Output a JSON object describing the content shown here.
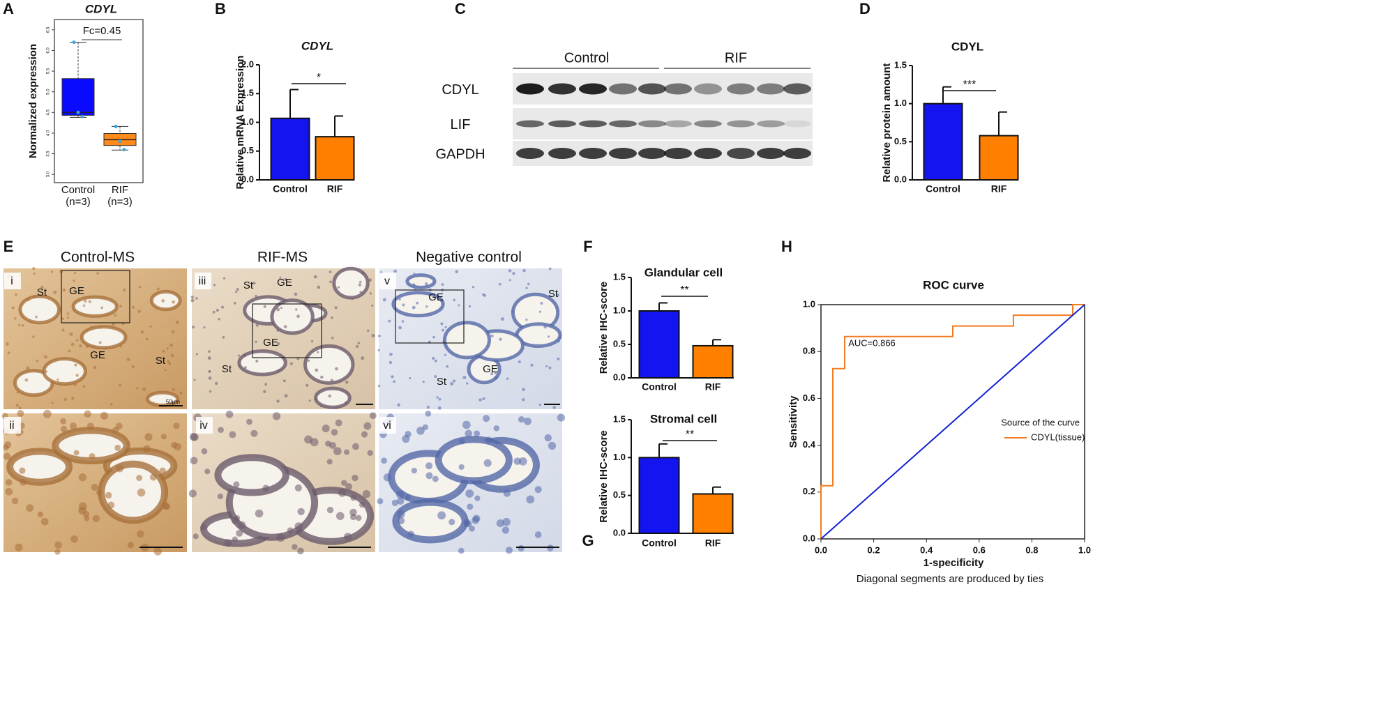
{
  "panels": [
    "A",
    "B",
    "C",
    "D",
    "E",
    "F",
    "G",
    "H"
  ],
  "blot": {
    "groups": [
      "Control",
      "RIF"
    ],
    "rows": [
      "CDYL",
      "LIF",
      "GAPDH"
    ]
  },
  "ihc": {
    "columns": [
      "Control-MS",
      "RIF-MS",
      "Negative control"
    ],
    "panels": [
      {
        "label": "i",
        "tags": [
          "St",
          "GE",
          "GE",
          "St"
        ],
        "scale": "50μm"
      },
      {
        "label": "ii"
      },
      {
        "label": "iii",
        "tags": [
          "St",
          "GE",
          "GE",
          "St"
        ]
      },
      {
        "label": "iv"
      },
      {
        "label": "v",
        "tags": [
          "GE",
          "St",
          "GE",
          "St"
        ]
      },
      {
        "label": "vi"
      }
    ]
  },
  "chart_data": [
    {
      "type": "box",
      "title": "CDYL",
      "ylabel": "Normalized expression",
      "annotation": "Fc=0.45",
      "categories": [
        "Control",
        "RIF"
      ],
      "category_notes": [
        "(n=3)",
        "(n=3)"
      ],
      "colors": [
        "#0a0aff",
        "#ff8c1a"
      ],
      "point_color": "#3aa8e0",
      "boxes": [
        {
          "min": 4.38,
          "q1": 4.43,
          "median": 4.5,
          "q3": 5.32,
          "max": 6.2,
          "points": [
            6.2,
            4.5,
            4.4
          ]
        },
        {
          "min": 3.59,
          "q1": 3.7,
          "median": 3.84,
          "q3": 3.99,
          "max": 4.16,
          "points": [
            4.16,
            3.8,
            3.6
          ]
        }
      ],
      "ylim": [
        2.8,
        6.75
      ],
      "yticks": [
        {
          "value": 3,
          "label": "3.0"
        },
        3.5,
        {
          "value": 4,
          "label": "4.0"
        },
        4.5,
        {
          "value": 5,
          "label": "5.0"
        },
        5.5,
        {
          "value": 6,
          "label": "6.0"
        },
        6.5
      ]
    },
    {
      "type": "bar",
      "title": "CDYL",
      "ylabel": "Relative mRNA Expression",
      "annotation": "*",
      "categories": [
        "Control",
        "RIF"
      ],
      "values": [
        1.07,
        0.75
      ],
      "errors": [
        0.5,
        0.36
      ],
      "colors": [
        "#1414f0",
        "#ff8000"
      ],
      "ylim": [
        0,
        2
      ],
      "yticks": [
        {
          "value": 0,
          "label": "0.0"
        },
        0.5,
        {
          "value": 1,
          "label": "1.0"
        },
        1.5,
        {
          "value": 2,
          "label": "2.0"
        }
      ]
    },
    {
      "type": "bar",
      "title": "CDYL",
      "ylabel": "Relative protein amount",
      "annotation": "***",
      "categories": [
        "Control",
        "RIF"
      ],
      "values": [
        1.0,
        0.58
      ],
      "errors": [
        0.22,
        0.31
      ],
      "colors": [
        "#1414f0",
        "#ff8000"
      ],
      "ylim": [
        0,
        1.5
      ],
      "yticks": [
        {
          "value": 0,
          "label": "0.0"
        },
        0.5,
        {
          "value": 1,
          "label": "1.0"
        },
        1.5
      ]
    },
    {
      "type": "bar",
      "title": "Glandular cell",
      "ylabel": "Relative IHC-score",
      "annotation": "**",
      "categories": [
        "Control",
        "RIF"
      ],
      "values": [
        1.0,
        0.48
      ],
      "errors": [
        0.12,
        0.09
      ],
      "colors": [
        "#1414f0",
        "#ff8000"
      ],
      "ylim": [
        0,
        1.5
      ],
      "yticks": [
        {
          "value": 0,
          "label": "0.0"
        },
        0.5,
        {
          "value": 1,
          "label": "1.0"
        },
        1.5
      ]
    },
    {
      "type": "bar",
      "title": "Stromal cell",
      "ylabel": "Relative IHC-score",
      "annotation": "**",
      "categories": [
        "Control",
        "RIF"
      ],
      "values": [
        1.0,
        0.52
      ],
      "errors": [
        0.18,
        0.09
      ],
      "colors": [
        "#1414f0",
        "#ff8000"
      ],
      "ylim": [
        0,
        1.5
      ],
      "yticks": [
        {
          "value": 0,
          "label": "0.0"
        },
        0.5,
        {
          "value": 1,
          "label": "1.0"
        },
        1.5
      ]
    },
    {
      "type": "line",
      "title": "ROC curve",
      "xlabel": "1-specificity",
      "ylabel": "Sensitivity",
      "note": "Diagonal segments are produced by ties",
      "annotation": "AUC=0.866",
      "legend_title": "Source of the curve",
      "series": [
        {
          "name": "CDYL(tissue)",
          "color": "#f47b20",
          "x": [
            0,
            0,
            0.045,
            0.045,
            0.09,
            0.09,
            0.5,
            0.5,
            0.73,
            0.73,
            0.955,
            0.955,
            1
          ],
          "values": [
            0,
            0.227,
            0.227,
            0.727,
            0.727,
            0.864,
            0.864,
            0.909,
            0.909,
            0.955,
            0.955,
            1,
            1
          ]
        },
        {
          "color": "#1020d0",
          "x": [
            0,
            1
          ],
          "values": [
            0,
            1
          ]
        }
      ],
      "xlim": [
        0,
        1
      ],
      "ylim": [
        0,
        1
      ],
      "xticks": [
        {
          "value": 0,
          "label": "0.0"
        },
        0.2,
        0.4,
        0.6,
        0.8,
        {
          "value": 1,
          "label": "1.0"
        }
      ],
      "yticks": [
        {
          "value": 0,
          "label": "0.0"
        },
        0.2,
        0.4,
        0.6,
        0.8,
        {
          "value": 1,
          "label": "1.0"
        }
      ]
    }
  ]
}
